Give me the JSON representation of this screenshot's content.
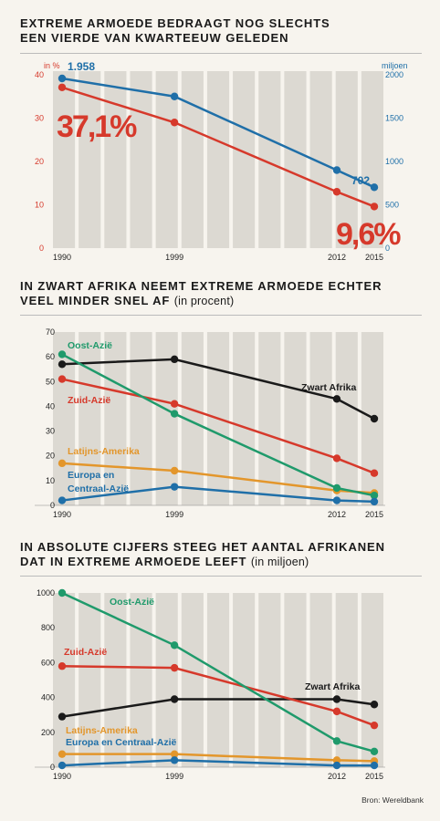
{
  "source": "Bron: Wereldbank",
  "chart_data": [
    {
      "type": "line",
      "title": "EXTREME ARMOEDE BEDRAAGT NOG SLECHTS EEN VIERDE VAN KWARTEEUW GELEDEN",
      "title_lines": [
        "EXTREME ARMOEDE BEDRAAGT NOG SLECHTS",
        "EEN VIERDE VAN KWARTEEUW GELEDEN"
      ],
      "x": [
        1990,
        1999,
        2012,
        2015
      ],
      "left_axis": {
        "label": "in %",
        "ylim": [
          0,
          40
        ],
        "ticks": [
          0,
          10,
          20,
          30,
          40
        ],
        "color": "#d6392b"
      },
      "right_axis": {
        "label": "miljoen",
        "ylim": [
          0,
          2000
        ],
        "ticks": [
          0,
          500,
          1000,
          1500,
          2000
        ],
        "color": "#1f6fa8"
      },
      "series": [
        {
          "axis": "left",
          "color": "#d6392b",
          "values": [
            37.1,
            29,
            13,
            9.6
          ]
        },
        {
          "axis": "right",
          "color": "#1f6fa8",
          "values": [
            1958,
            1750,
            900,
            702
          ]
        }
      ],
      "annotations": {
        "start_pct": "37,1%",
        "end_pct": "9,6%",
        "start_mln": "1.958",
        "end_mln": "702"
      },
      "grid": true
    },
    {
      "type": "line",
      "title_lines": [
        "IN ZWART AFRIKA NEEMT EXTREME ARMOEDE ECHTER",
        "VEEL MINDER SNEL AF"
      ],
      "title_unit": "(in procent)",
      "x": [
        1990,
        1999,
        2012,
        2015
      ],
      "ylim": [
        0,
        70
      ],
      "yticks": [
        0,
        10,
        20,
        30,
        40,
        50,
        60,
        70
      ],
      "series": [
        {
          "name": "Oost-Azië",
          "color": "#1f9a6b",
          "values": [
            61,
            37,
            7,
            4
          ]
        },
        {
          "name": "Zwart Afrika",
          "color": "#1a1a1a",
          "values": [
            57,
            59,
            43,
            35
          ]
        },
        {
          "name": "Zuid-Azië",
          "color": "#d6392b",
          "values": [
            51,
            41,
            19,
            13
          ]
        },
        {
          "name": "Latijns-Amerika",
          "color": "#e3962b",
          "values": [
            17,
            14,
            6,
            5
          ]
        },
        {
          "name": "Europa en\nCentraal-Azië",
          "color": "#1f6fa8",
          "values": [
            2,
            7.5,
            2,
            1.5
          ]
        }
      ],
      "grid": true
    },
    {
      "type": "line",
      "title_lines": [
        "IN ABSOLUTE CIJFERS STEEG HET AANTAL AFRIKANEN",
        "DAT IN EXTREME ARMOEDE LEEFT"
      ],
      "title_unit": "(in miljoen)",
      "x": [
        1990,
        1999,
        2012,
        2015
      ],
      "ylim": [
        0,
        1000
      ],
      "yticks": [
        0,
        200,
        400,
        600,
        800,
        1000
      ],
      "series": [
        {
          "name": "Oost-Azië",
          "color": "#1f9a6b",
          "values": [
            1000,
            700,
            150,
            90
          ]
        },
        {
          "name": "Zuid-Azië",
          "color": "#d6392b",
          "values": [
            580,
            570,
            320,
            240
          ]
        },
        {
          "name": "Zwart Afrika",
          "color": "#1a1a1a",
          "values": [
            290,
            390,
            390,
            360
          ]
        },
        {
          "name": "Latijns-Amerika",
          "color": "#e3962b",
          "values": [
            75,
            75,
            40,
            35
          ]
        },
        {
          "name": "Europa en Centraal-Azië",
          "color": "#1f6fa8",
          "values": [
            10,
            40,
            10,
            10
          ]
        }
      ],
      "grid": true
    }
  ]
}
